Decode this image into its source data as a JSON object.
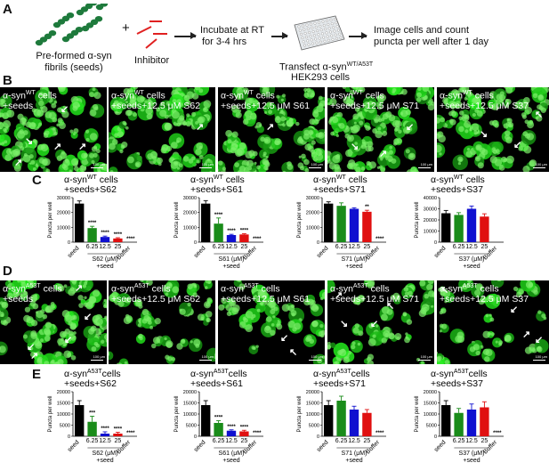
{
  "panel_labels": {
    "a": "A",
    "b": "B",
    "c": "C",
    "d": "D",
    "e": "E"
  },
  "schematic": {
    "seeds_caption_line1": "Pre-formed α-syn",
    "seeds_caption_line2": "fibrils (seeds)",
    "plus": "+",
    "inhibitor_caption": "Inhibitor",
    "incubate_line1": "Incubate at RT",
    "incubate_line2": "for 3-4 hrs",
    "transfect_prefix": "Transfect α-syn",
    "transfect_sup": "WT/A53T",
    "transfect_line2": "HEK293 cells",
    "image_line1": "Image cells and count",
    "image_line2": "puncta per well after 1 day",
    "colors": {
      "fibril": "#1e7a3c",
      "inhibitor": "#e02020",
      "plate": "#dde2e6"
    }
  },
  "micrographs_b": [
    {
      "line1": "α-syn",
      "sup": "WT",
      "suffix": " cells",
      "line2": "+seeds"
    },
    {
      "line1": "α-syn",
      "sup": "WT",
      "suffix": " cells",
      "line2": "+seeds+12.5 μM S62"
    },
    {
      "line1": "α-syn",
      "sup": "WT",
      "suffix": " cells",
      "line2": "+seeds+12.5 μM S61"
    },
    {
      "line1": "α-syn",
      "sup": "WT",
      "suffix": " cells",
      "line2": "+seeds+12.5 μM S71"
    },
    {
      "line1": "α-syn",
      "sup": "WT",
      "suffix": " cells",
      "line2": "+seeds+12.5 μM S37"
    }
  ],
  "micrographs_d": [
    {
      "line1": "α-syn",
      "sup": "A53T",
      "suffix": " cells",
      "line2": "+seeds"
    },
    {
      "line1": "α-syn",
      "sup": "A53T",
      "suffix": " cells",
      "line2": "+seeds+12.5 μM S62"
    },
    {
      "line1": "α-syn",
      "sup": "A53T",
      "suffix": " cells",
      "line2": "+seeds+12.5 μM S61"
    },
    {
      "line1": "α-syn",
      "sup": "A53T",
      "suffix": " cells",
      "line2": "+seeds+12.5 μM S71"
    },
    {
      "line1": "α-syn",
      "sup": "A53T",
      "suffix": " cells",
      "line2": "+seeds+12.5 μM S37"
    }
  ],
  "scale_text": "100 μm",
  "chart_data": [
    {
      "panel": "C",
      "type": "bar",
      "title_prefix": "α-syn",
      "title_sup": "WT",
      "title_suffix": " cells",
      "title_line2": "+seeds+S62",
      "ylabel": "Puncta per well",
      "ylim": [
        0,
        30000
      ],
      "yticks": [
        0,
        10000,
        20000,
        30000
      ],
      "categories": [
        "seed",
        "6.25",
        "12.5",
        "25",
        "Buffer"
      ],
      "values": [
        26000,
        9500,
        3500,
        2500,
        0
      ],
      "errors": [
        1800,
        1200,
        600,
        500,
        0
      ],
      "colors": [
        "#000000",
        "#1a8c1a",
        "#1010d0",
        "#e01010",
        "#000000"
      ],
      "stars": [
        "",
        "****",
        "****",
        "****",
        "****"
      ],
      "xgroup_label": "S62 (μM)",
      "xgroup_sub": "+seed"
    },
    {
      "panel": "C",
      "type": "bar",
      "title_prefix": "α-syn",
      "title_sup": "WT",
      "title_suffix": " cells",
      "title_line2": "+seeds+S61",
      "ylabel": "Puncta per well",
      "ylim": [
        0,
        30000
      ],
      "yticks": [
        0,
        10000,
        20000,
        30000
      ],
      "categories": [
        "seed",
        "6.25",
        "12.5",
        "25",
        "Buffer"
      ],
      "values": [
        26000,
        12500,
        4800,
        5200,
        0
      ],
      "errors": [
        2000,
        3800,
        500,
        500,
        0
      ],
      "colors": [
        "#000000",
        "#1a8c1a",
        "#1010d0",
        "#e01010",
        "#000000"
      ],
      "stars": [
        "",
        "****",
        "****",
        "****",
        "****"
      ],
      "xgroup_label": "S61 (μM)",
      "xgroup_sub": "+seed"
    },
    {
      "panel": "C",
      "type": "bar",
      "title_prefix": "α-syn",
      "title_sup": "WT",
      "title_suffix": " cells",
      "title_line2": "+seeds+S71",
      "ylabel": "Puncta per well",
      "ylim": [
        0,
        30000
      ],
      "yticks": [
        0,
        10000,
        20000,
        30000
      ],
      "categories": [
        "seed",
        "6.25",
        "12.5",
        "25",
        "Buffer"
      ],
      "values": [
        26000,
        24500,
        22500,
        20500,
        0
      ],
      "errors": [
        1200,
        2000,
        700,
        1000,
        0
      ],
      "colors": [
        "#000000",
        "#1a8c1a",
        "#1010d0",
        "#e01010",
        "#000000"
      ],
      "stars": [
        "",
        "",
        "",
        "**",
        "****"
      ],
      "xgroup_label": "S71 (μM)",
      "xgroup_sub": "+seed"
    },
    {
      "panel": "C",
      "type": "bar",
      "title_prefix": "α-syn",
      "title_sup": "WT",
      "title_suffix": " cells",
      "title_line2": "+seeds+S37",
      "ylabel": "Puncta per well",
      "ylim": [
        0,
        40000
      ],
      "yticks": [
        0,
        10000,
        20000,
        30000,
        40000
      ],
      "categories": [
        "seed",
        "6.25",
        "12.5",
        "25",
        "Buffer"
      ],
      "values": [
        26000,
        24500,
        30000,
        23000,
        0
      ],
      "errors": [
        2500,
        2000,
        2500,
        2500,
        0
      ],
      "colors": [
        "#000000",
        "#1a8c1a",
        "#1010d0",
        "#e01010",
        "#000000"
      ],
      "stars": [
        "",
        "",
        "",
        "",
        ""
      ],
      "xgroup_label": "S37 (μM)",
      "xgroup_sub": "+seed"
    },
    {
      "panel": "E",
      "type": "bar",
      "title_prefix": "α-syn",
      "title_sup": "A53T",
      "title_suffix": "cells",
      "title_line2": "+seeds+S62",
      "ylabel": "Puncta per well",
      "ylim": [
        0,
        20000
      ],
      "yticks": [
        0,
        5000,
        10000,
        15000,
        20000
      ],
      "categories": [
        "seed",
        "6.25",
        "12.5",
        "25",
        "Buffer"
      ],
      "values": [
        14000,
        6500,
        1200,
        1200,
        0
      ],
      "errors": [
        2000,
        2500,
        800,
        600,
        0
      ],
      "colors": [
        "#000000",
        "#1a8c1a",
        "#1010d0",
        "#e01010",
        "#000000"
      ],
      "stars": [
        "",
        "***",
        "****",
        "****",
        "****"
      ],
      "xgroup_label": "S62 (μM)",
      "xgroup_sub": "+seed"
    },
    {
      "panel": "E",
      "type": "bar",
      "title_prefix": "α-syn",
      "title_sup": "A53T",
      "title_suffix": "cells",
      "title_line2": "+seeds+S61",
      "ylabel": "Puncta per well",
      "ylim": [
        0,
        20000
      ],
      "yticks": [
        0,
        5000,
        10000,
        15000,
        20000
      ],
      "categories": [
        "seed",
        "6.25",
        "12.5",
        "25",
        "Buffer"
      ],
      "values": [
        14000,
        6000,
        2500,
        2200,
        0
      ],
      "errors": [
        2000,
        1000,
        400,
        500,
        0
      ],
      "colors": [
        "#000000",
        "#1a8c1a",
        "#1010d0",
        "#e01010",
        "#000000"
      ],
      "stars": [
        "",
        "****",
        "****",
        "****",
        "****"
      ],
      "xgroup_label": "S61 (μM)",
      "xgroup_sub": "+seed"
    },
    {
      "panel": "E",
      "type": "bar",
      "title_prefix": "α-syn",
      "title_sup": "A53T",
      "title_suffix": "cells",
      "title_line2": "+seeds+S71",
      "ylabel": "Puncta per well",
      "ylim": [
        0,
        20000
      ],
      "yticks": [
        0,
        5000,
        10000,
        15000,
        20000
      ],
      "categories": [
        "seed",
        "6.25",
        "12.5",
        "25",
        "Buffer"
      ],
      "values": [
        14000,
        16000,
        12000,
        10500,
        0
      ],
      "errors": [
        2000,
        2000,
        1500,
        1500,
        0
      ],
      "colors": [
        "#000000",
        "#1a8c1a",
        "#1010d0",
        "#e01010",
        "#000000"
      ],
      "stars": [
        "",
        "",
        "",
        "",
        "****"
      ],
      "xgroup_label": "S71 (μM)",
      "xgroup_sub": "+seed"
    },
    {
      "panel": "E",
      "type": "bar",
      "title_prefix": "α-syn",
      "title_sup": "A53T",
      "title_suffix": "cells",
      "title_line2": "+seeds+S37",
      "ylabel": "Puncta per well",
      "ylim": [
        0,
        20000
      ],
      "yticks": [
        0,
        5000,
        10000,
        15000,
        20000
      ],
      "categories": [
        "seed",
        "6.25",
        "12.5",
        "25",
        "Buffer"
      ],
      "values": [
        14000,
        10500,
        12000,
        13000,
        0
      ],
      "errors": [
        2000,
        2000,
        2500,
        2500,
        0
      ],
      "colors": [
        "#000000",
        "#1a8c1a",
        "#1010d0",
        "#e01010",
        "#000000"
      ],
      "stars": [
        "",
        "",
        "",
        "",
        "****"
      ],
      "xgroup_label": "S37 (μM)",
      "xgroup_sub": "+seed"
    }
  ]
}
